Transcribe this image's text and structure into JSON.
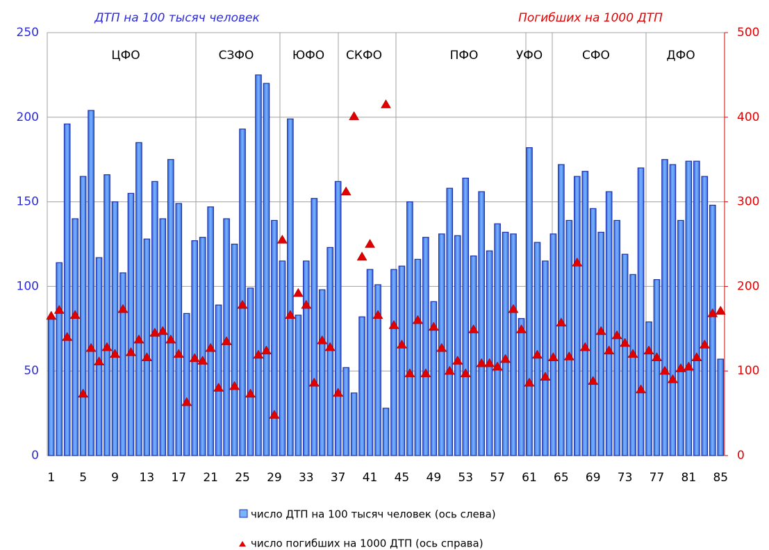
{
  "chart_data": {
    "type": "bar+scatter",
    "y_label": "ДТП на 100 тысяч человек",
    "y2_label": "Погибших на 1000 ДТП",
    "regions": [
      "ЦФО",
      "СЗФО",
      "ЮФО",
      "СКФО",
      "ПФО",
      "УФО",
      "СФО",
      "ДФО"
    ],
    "categories": [
      1,
      null,
      null,
      null,
      5,
      null,
      null,
      null,
      9,
      null,
      null,
      null,
      13,
      null,
      null,
      null,
      17,
      null,
      null,
      null,
      21,
      null,
      null,
      null,
      25,
      null,
      null,
      null,
      29,
      null,
      null,
      null,
      33,
      null,
      null,
      null,
      37,
      null,
      null,
      null,
      41,
      null,
      null,
      null,
      45,
      null,
      null,
      null,
      49,
      null,
      null,
      null,
      53,
      null,
      null,
      null,
      57,
      null,
      null,
      null,
      61,
      null,
      null,
      null,
      65,
      null,
      null,
      null,
      69,
      null,
      null,
      null,
      73,
      null,
      null,
      null,
      77,
      null,
      null,
      null,
      81,
      null,
      null,
      null,
      85
    ],
    "series": [
      {
        "name": "число ДТП на 100 тысяч человек (ось слева)",
        "type": "bar",
        "color": "#79b4ff",
        "edge": "#1c2fa8",
        "values": [
          82,
          114,
          196,
          140,
          165,
          204,
          117,
          166,
          150,
          108,
          155,
          185,
          128,
          162,
          140,
          175,
          149,
          84,
          127,
          129,
          147,
          89,
          140,
          125,
          193,
          99,
          225,
          220,
          139,
          115,
          199,
          83,
          115,
          152,
          98,
          123,
          162,
          52,
          37,
          82,
          110,
          101,
          28,
          110,
          112,
          150,
          116,
          129,
          91,
          131,
          158,
          130,
          164,
          118,
          156,
          121,
          137,
          132,
          131,
          81,
          182,
          126,
          115,
          131,
          172,
          139,
          165,
          168,
          146,
          132,
          156,
          139,
          119,
          107,
          170,
          79,
          104,
          175,
          172,
          139,
          174,
          174,
          165,
          148,
          57
        ]
      },
      {
        "name": "число погибших на 1000 ДТП (ось справа)",
        "type": "scatter",
        "axis": "y2",
        "color": "#e00000",
        "values": [
          165,
          172,
          140,
          166,
          73,
          127,
          111,
          128,
          120,
          173,
          122,
          137,
          116,
          145,
          147,
          137,
          120,
          63,
          115,
          112,
          127,
          80,
          135,
          82,
          178,
          73,
          119,
          124,
          48,
          255,
          166,
          192,
          178,
          86,
          136,
          128,
          74,
          312,
          401,
          235,
          250,
          166,
          415,
          154,
          131,
          97,
          160,
          97,
          152,
          127,
          100,
          112,
          97,
          149,
          109,
          109,
          105,
          114,
          173,
          149,
          86,
          119,
          93,
          116,
          157,
          117,
          228,
          128,
          88,
          147,
          124,
          142,
          133,
          120,
          78,
          124,
          116,
          100,
          90,
          103,
          105,
          116,
          131,
          168,
          171
        ]
      }
    ],
    "ylim": [
      0,
      250
    ],
    "yticks": [
      0,
      50,
      100,
      150,
      200,
      250
    ],
    "y2lim": [
      0,
      500
    ],
    "y2ticks": [
      0,
      100,
      200,
      300,
      400,
      500
    ],
    "grid": true
  }
}
